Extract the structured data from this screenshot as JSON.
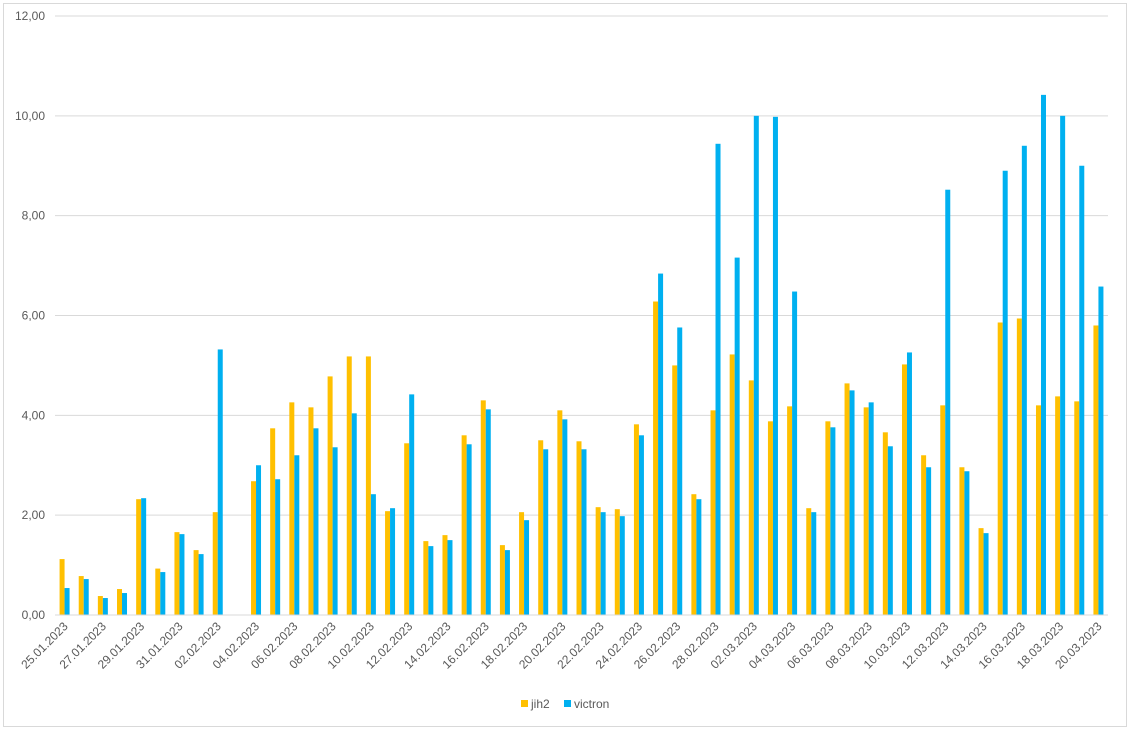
{
  "chart_data": {
    "type": "bar",
    "title": "",
    "xlabel": "",
    "ylabel": "",
    "ylim": [
      0,
      12
    ],
    "yticks": [
      "0,00",
      "2,00",
      "4,00",
      "6,00",
      "8,00",
      "10,00",
      "12,00"
    ],
    "grid": true,
    "legend_position": "bottom",
    "categories": [
      "25.01.2023",
      "26.01.2023",
      "27.01.2023",
      "28.01.2023",
      "29.01.2023",
      "30.01.2023",
      "31.01.2023",
      "01.02.2023",
      "02.02.2023",
      "03.02.2023",
      "04.02.2023",
      "05.02.2023",
      "06.02.2023",
      "07.02.2023",
      "08.02.2023",
      "09.02.2023",
      "10.02.2023",
      "11.02.2023",
      "12.02.2023",
      "13.02.2023",
      "14.02.2023",
      "15.02.2023",
      "16.02.2023",
      "17.02.2023",
      "18.02.2023",
      "19.02.2023",
      "20.02.2023",
      "21.02.2023",
      "22.02.2023",
      "23.02.2023",
      "24.02.2023",
      "25.02.2023",
      "26.02.2023",
      "27.02.2023",
      "28.02.2023",
      "01.03.2023",
      "02.03.2023",
      "03.03.2023",
      "04.03.2023",
      "05.03.2023",
      "06.03.2023",
      "07.03.2023",
      "08.03.2023",
      "09.03.2023",
      "10.03.2023",
      "11.03.2023",
      "12.03.2023",
      "13.03.2023",
      "14.03.2023",
      "15.03.2023",
      "16.03.2023",
      "17.03.2023",
      "18.03.2023",
      "19.03.2023",
      "20.03.2023"
    ],
    "xtick_labels": [
      "25.01.2023",
      "27.01.2023",
      "29.01.2023",
      "31.01.2023",
      "02.02.2023",
      "04.02.2023",
      "06.02.2023",
      "08.02.2023",
      "10.02.2023",
      "12.02.2023",
      "14.02.2023",
      "16.02.2023",
      "18.02.2023",
      "20.02.2023",
      "22.02.2023",
      "24.02.2023",
      "26.02.2023",
      "28.02.2023",
      "02.03.2023",
      "04.03.2023",
      "06.03.2023",
      "08.03.2023",
      "10.03.2023",
      "12.03.2023",
      "14.03.2023",
      "16.03.2023",
      "18.03.2023",
      "20.03.2023"
    ],
    "series": [
      {
        "name": "jih2",
        "color": "#FFC000",
        "values": [
          1.12,
          0.78,
          0.38,
          0.52,
          2.32,
          0.93,
          1.66,
          1.3,
          2.06,
          null,
          2.68,
          3.74,
          4.26,
          4.16,
          4.78,
          5.18,
          5.18,
          2.08,
          3.44,
          1.48,
          1.6,
          3.6,
          4.3,
          1.4,
          2.06,
          3.5,
          4.1,
          3.48,
          2.16,
          2.12,
          3.82,
          6.28,
          5.0,
          2.42,
          4.1,
          5.22,
          4.7,
          3.88,
          4.18,
          2.14,
          3.88,
          4.64,
          4.16,
          3.66,
          5.02,
          3.2,
          4.2,
          2.96,
          1.74,
          5.86,
          5.94,
          4.2,
          4.38,
          4.28,
          5.8
        ]
      },
      {
        "name": "victron",
        "color": "#00B0F0",
        "values": [
          0.54,
          0.72,
          0.34,
          0.44,
          2.34,
          0.86,
          1.62,
          1.22,
          5.32,
          null,
          3.0,
          2.72,
          3.2,
          3.74,
          3.36,
          4.04,
          2.42,
          2.14,
          4.42,
          1.38,
          1.5,
          3.42,
          4.12,
          1.3,
          1.9,
          3.32,
          3.92,
          3.32,
          2.06,
          1.98,
          3.6,
          6.84,
          5.76,
          2.32,
          9.44,
          7.16,
          10.0,
          9.98,
          6.48,
          2.06,
          3.76,
          4.5,
          4.26,
          3.38,
          5.26,
          2.96,
          8.52,
          2.88,
          1.64,
          8.9,
          9.4,
          10.42,
          10.0,
          9.0,
          6.58
        ]
      }
    ]
  }
}
